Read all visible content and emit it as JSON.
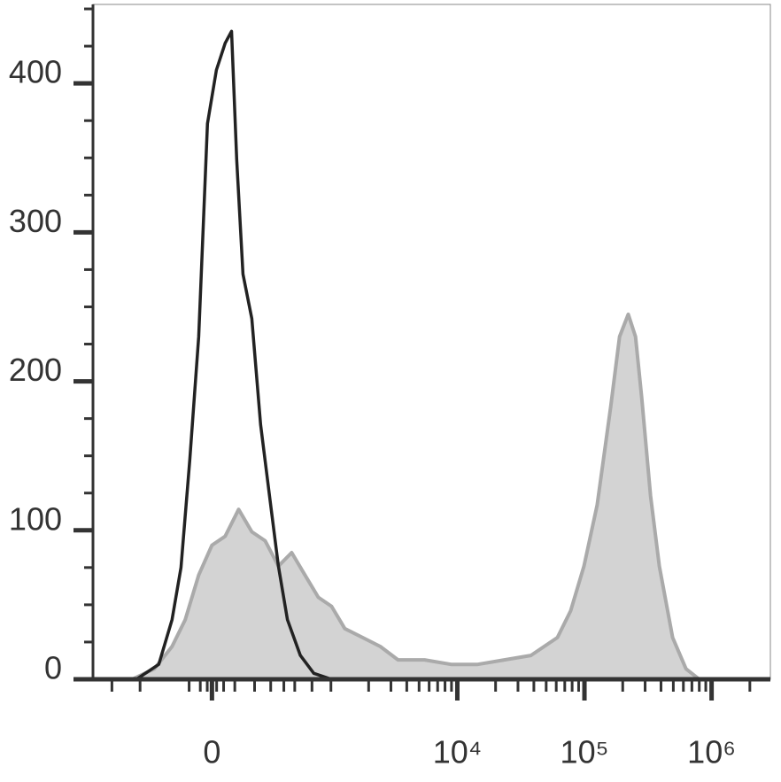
{
  "chart_data": {
    "type": "area",
    "x_scale": {
      "type": "arcsinh",
      "cofactor": 235
    },
    "xlim": [
      -1000,
      2900000
    ],
    "xticks": [
      {
        "value": 0,
        "label": "0"
      },
      {
        "value": 10000,
        "label": "10⁴"
      },
      {
        "value": 100000,
        "label": "10⁵"
      },
      {
        "value": 1000000,
        "label": "10⁶"
      }
    ],
    "xminorticks": [
      -700,
      -400,
      -100,
      -50,
      -20,
      20,
      50,
      100,
      200,
      300,
      400,
      500,
      700,
      1000,
      2000,
      3000,
      4000,
      5000,
      6000,
      7000,
      8000,
      9000,
      20000,
      30000,
      40000,
      50000,
      60000,
      70000,
      80000,
      90000,
      200000,
      300000,
      400000,
      500000,
      600000,
      700000,
      800000,
      900000,
      2000000
    ],
    "ylim": [
      0,
      453
    ],
    "yticks": [
      0,
      100,
      200,
      300,
      400
    ],
    "yminorticks": [
      25,
      50,
      75,
      125,
      150,
      175,
      225,
      250,
      275,
      325,
      350,
      375,
      425,
      450
    ],
    "series": [
      {
        "color": "#aaaaaa",
        "fill": "#d3d3d3",
        "x": [
          -470,
          -292,
          -185,
          -118,
          -57,
          0,
          57,
          118,
          185,
          263,
          356,
          470,
          611,
          790,
          1011,
          1293,
          1791,
          2473,
          3412,
          5523,
          8930,
          14476,
          23430,
          37900,
          61300,
          78000,
          99200,
          126000,
          161000,
          189000,
          221000,
          252000,
          282000,
          331000,
          388000,
          494000,
          629000,
          799000,
          939000
        ],
        "values": [
          0,
          7,
          22,
          40,
          70,
          90,
          96,
          114,
          99,
          93,
          76,
          85,
          70,
          55,
          49,
          34,
          28,
          22,
          13,
          13,
          10,
          10,
          13,
          16,
          28,
          46,
          76,
          117,
          183,
          230,
          245,
          230,
          189,
          123,
          76,
          28,
          7,
          0,
          0
        ]
      },
      {
        "color": "#222222",
        "fill": "none",
        "x": [
          -431,
          -263,
          -185,
          -139,
          -97,
          -57,
          -19,
          19,
          57,
          85,
          109,
          139,
          185,
          235,
          292,
          356,
          431,
          559,
          725,
          1011,
          1523
        ],
        "values": [
          0,
          10,
          40,
          75,
          147,
          230,
          373,
          409,
          427,
          435,
          349,
          272,
          242,
          171,
          123,
          76,
          40,
          16,
          4,
          0,
          0
        ]
      }
    ]
  }
}
